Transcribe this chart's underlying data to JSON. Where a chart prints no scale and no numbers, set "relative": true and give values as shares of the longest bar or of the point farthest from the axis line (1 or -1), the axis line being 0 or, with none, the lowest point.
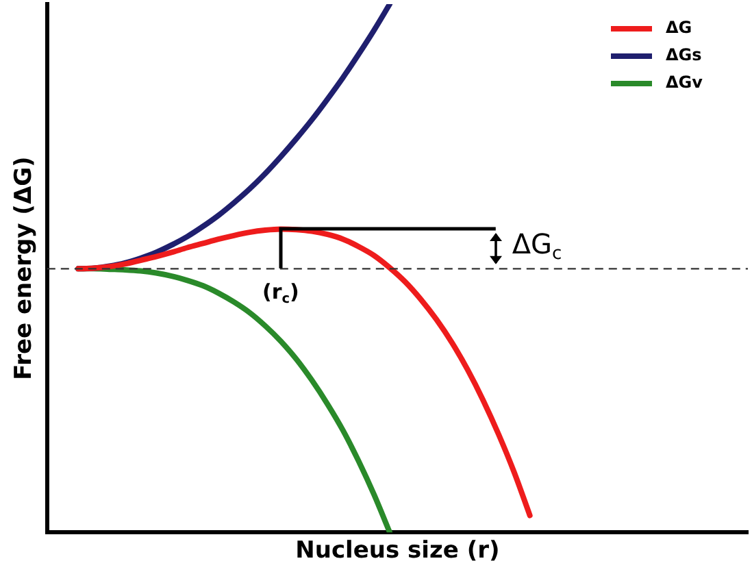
{
  "chart_data": {
    "type": "line",
    "relative": true,
    "xlabel": "Nucleus size (r)",
    "ylabel": "Free energy (ΔG)",
    "categories": [
      null,
      null,
      null,
      null,
      null,
      null,
      null,
      null,
      null,
      null,
      null,
      null,
      null,
      null,
      null,
      null,
      null,
      null,
      null,
      null,
      null,
      null,
      null,
      null,
      null,
      null,
      null,
      null,
      null,
      null,
      null,
      null,
      null,
      null,
      null,
      null,
      null,
      null,
      null,
      null,
      null,
      null,
      null,
      null,
      null,
      null
    ],
    "series": [
      {
        "name": "ΔG",
        "color": "#ee1c1c",
        "values": [
          null,
          null,
          0.499,
          0.5,
          0.503,
          0.508,
          0.515,
          0.522,
          0.53,
          0.539,
          0.547,
          0.555,
          0.562,
          0.568,
          0.572,
          0.574,
          0.573,
          0.57,
          0.564,
          0.555,
          0.541,
          0.524,
          0.501,
          0.474,
          0.441,
          0.403,
          0.359,
          0.308,
          0.25,
          0.185,
          0.113,
          0.032,
          null,
          null,
          null,
          null,
          null,
          null,
          null,
          null,
          null,
          null,
          null,
          null,
          null,
          null
        ]
      },
      {
        "name": "ΔGs",
        "color": "#1f1f6e",
        "values": [
          null,
          null,
          0.499,
          0.5,
          0.504,
          0.51,
          0.519,
          0.53,
          0.544,
          0.56,
          0.579,
          0.6,
          0.624,
          0.65,
          0.679,
          0.711,
          0.745,
          0.781,
          0.82,
          0.861,
          0.905,
          0.951,
          1.0,
          null,
          null,
          null,
          null,
          null,
          null,
          null,
          null,
          null,
          null,
          null,
          null,
          null,
          null,
          null,
          null,
          null,
          null,
          null,
          null,
          null,
          null,
          null
        ]
      },
      {
        "name": "ΔGv",
        "color": "#2a8a2a",
        "values": [
          null,
          null,
          0.499,
          0.499,
          0.498,
          0.497,
          0.495,
          0.491,
          0.485,
          0.477,
          0.467,
          0.453,
          0.436,
          0.416,
          0.391,
          0.362,
          0.328,
          0.288,
          0.243,
          0.193,
          0.135,
          0.071,
          0.0,
          null,
          null,
          null,
          null,
          null,
          null,
          null,
          null,
          null,
          null,
          null,
          null,
          null,
          null,
          null,
          null,
          null,
          null,
          null,
          null,
          null,
          null,
          null
        ]
      }
    ],
    "ref_lines": [
      {
        "axis": "y",
        "value": 0.499,
        "color": "#333333",
        "line_style": "dashed"
      }
    ],
    "annotations": [
      "ΔG$_{c}$",
      "(r$_{c}$)"
    ],
    "legend": "top right",
    "grid": false,
    "tick_labels": false,
    "marker": "none",
    "line_style": "solid"
  }
}
